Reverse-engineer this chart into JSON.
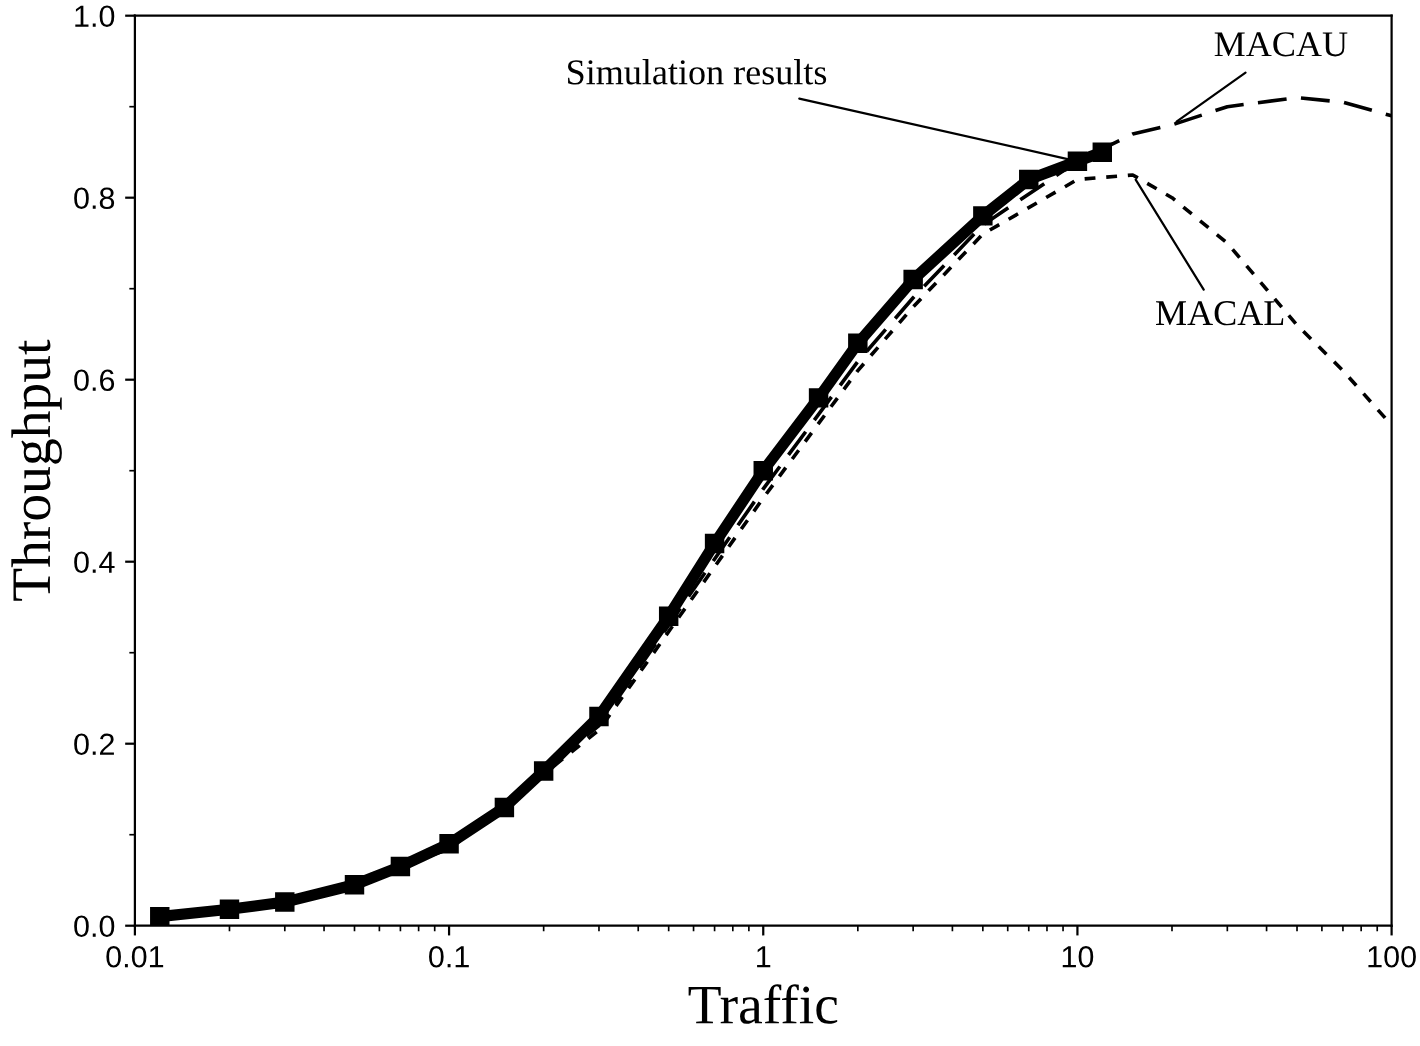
{
  "chart_data": {
    "type": "line",
    "xlabel": "Traffic",
    "ylabel": "Throughput",
    "log": "x",
    "xlim": [
      0.01,
      100
    ],
    "xticks": [
      0.01,
      0.1,
      1,
      10,
      100
    ],
    "ylim": [
      0,
      1.0
    ],
    "yticks": [
      {
        "value": 0,
        "label": "0.0"
      },
      0.2,
      0.4,
      0.6,
      0.8,
      {
        "value": 1.0,
        "label": "1.0"
      }
    ],
    "grid": false,
    "legend": false,
    "series": [
      {
        "name": "Simulation results",
        "color": "#000000",
        "marker": "square",
        "line_style": "solid",
        "x": [
          0.012,
          0.02,
          0.03,
          0.05,
          0.07,
          0.1,
          0.15,
          0.2,
          0.3,
          0.5,
          0.7,
          1,
          1.5,
          2,
          3,
          5,
          7,
          10,
          12
        ],
        "values": [
          0.01,
          0.018,
          0.026,
          0.045,
          0.065,
          0.09,
          0.13,
          0.17,
          0.23,
          0.34,
          0.42,
          0.5,
          0.58,
          0.64,
          0.71,
          0.78,
          0.82,
          0.84,
          0.85
        ]
      },
      {
        "name": "MACAU",
        "color": "#000000",
        "marker": "none",
        "line_style": "dashed",
        "x": [
          0.012,
          0.03,
          0.1,
          0.3,
          1,
          2,
          3,
          5,
          10,
          15,
          20,
          30,
          50,
          70,
          100
        ],
        "values": [
          0.009,
          0.024,
          0.085,
          0.22,
          0.48,
          0.62,
          0.69,
          0.77,
          0.84,
          0.87,
          0.88,
          0.9,
          0.91,
          0.905,
          0.89
        ]
      },
      {
        "name": "MACAL",
        "color": "#000000",
        "marker": "none",
        "line_style": "dotted",
        "x": [
          0.012,
          0.03,
          0.1,
          0.3,
          1,
          2,
          3,
          5,
          10,
          15,
          20,
          30,
          50,
          70,
          100
        ],
        "values": [
          0.009,
          0.024,
          0.084,
          0.215,
          0.47,
          0.61,
          0.68,
          0.76,
          0.82,
          0.825,
          0.8,
          0.75,
          0.66,
          0.61,
          0.55
        ]
      }
    ]
  }
}
